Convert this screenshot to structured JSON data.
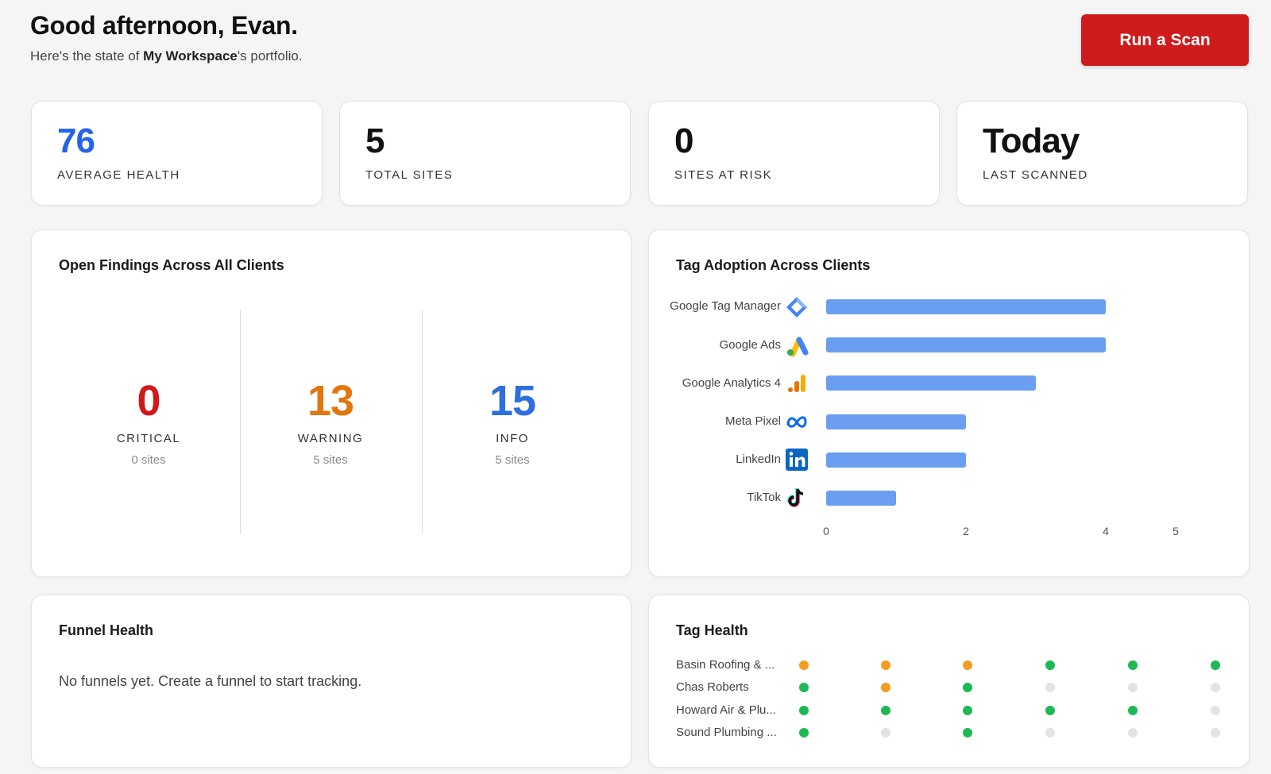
{
  "header": {
    "greeting": "Good afternoon, Evan.",
    "subtitle_prefix": "Here's the state of ",
    "workspace": "My Workspace",
    "subtitle_suffix": "'s portfolio."
  },
  "actions": {
    "run_scan_label": "Run a Scan",
    "accent": "#cf1b1b"
  },
  "stats": [
    {
      "value": "76",
      "label": "AVERAGE HEALTH",
      "color": "#2563eb"
    },
    {
      "value": "5",
      "label": "TOTAL SITES",
      "color": "#111111"
    },
    {
      "value": "0",
      "label": "SITES AT RISK",
      "color": "#111111"
    },
    {
      "value": "Today",
      "label": "LAST SCANNED",
      "color": "#111111"
    }
  ],
  "findings": {
    "title": "Open Findings Across All Clients",
    "items": [
      {
        "value": "0",
        "label": "CRITICAL",
        "sub": "0 sites",
        "color": "#d0191b"
      },
      {
        "value": "13",
        "label": "WARNING",
        "sub": "5 sites",
        "color": "#e0760d"
      },
      {
        "value": "15",
        "label": "INFO",
        "sub": "5 sites",
        "color": "#2d6fe0"
      }
    ]
  },
  "tag_adoption": {
    "title": "Tag Adoption Across Clients",
    "bar_color": "#6a9ef0",
    "chart_data": {
      "type": "bar",
      "orientation": "horizontal",
      "categories": [
        "Google Tag Manager",
        "Google Ads",
        "Google Analytics 4",
        "Meta Pixel",
        "LinkedIn",
        "TikTok"
      ],
      "icons": [
        "gtm-icon",
        "google-ads-icon",
        "ga4-icon",
        "meta-icon",
        "linkedin-icon",
        "tiktok-icon"
      ],
      "values": [
        4,
        4,
        3,
        2,
        2,
        1
      ],
      "xlim": [
        0,
        5
      ],
      "xticks": [
        "0",
        "2",
        "4",
        "5"
      ]
    }
  },
  "funnel": {
    "title": "Funnel Health",
    "empty_text": "No funnels yet. Create a funnel to start tracking."
  },
  "tag_health": {
    "title": "Tag Health",
    "status_colors": {
      "warning": "#f39c1f",
      "ok": "#1db954",
      "none": "#e3e3e3"
    },
    "rows": [
      {
        "name": "Basin Roofing & ...",
        "statuses": [
          "warning",
          "warning",
          "warning",
          "ok",
          "ok",
          "ok"
        ]
      },
      {
        "name": "Chas Roberts",
        "statuses": [
          "ok",
          "warning",
          "ok",
          "none",
          "none",
          "none"
        ]
      },
      {
        "name": "Howard Air & Plu...",
        "statuses": [
          "ok",
          "ok",
          "ok",
          "ok",
          "ok",
          "none"
        ]
      },
      {
        "name": "Sound Plumbing ...",
        "statuses": [
          "ok",
          "none",
          "ok",
          "none",
          "none",
          "none"
        ]
      }
    ]
  }
}
